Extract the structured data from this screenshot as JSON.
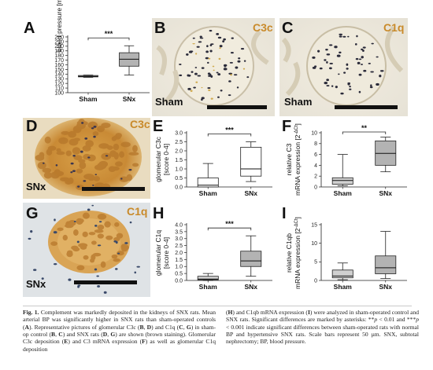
{
  "panels": {
    "A": {
      "letter": "A",
      "sig": "***"
    },
    "B": {
      "letter": "B",
      "label": "C3c",
      "group": "Sham"
    },
    "C": {
      "letter": "C",
      "label": "C1q",
      "group": "Sham"
    },
    "D": {
      "letter": "D",
      "label": "C3c",
      "group": "SNx"
    },
    "E": {
      "letter": "E",
      "sig": "***"
    },
    "F": {
      "letter": "F",
      "sig": "**"
    },
    "G": {
      "letter": "G",
      "label": "C1q",
      "group": "SNx"
    },
    "H": {
      "letter": "H",
      "sig": "***"
    },
    "I": {
      "letter": "I"
    }
  },
  "chart_data": [
    {
      "panel": "A",
      "type": "box",
      "categories": [
        "Sham",
        "SNx"
      ],
      "ylabel": "blood pressure [mmHg]",
      "yticks": [
        100,
        110,
        120,
        130,
        140,
        150,
        160,
        170,
        180,
        190,
        200,
        210,
        220
      ],
      "ylim": [
        100,
        220
      ],
      "boxes": [
        {
          "name": "Sham",
          "min": 133,
          "q1": 134,
          "median": 135,
          "q3": 137,
          "max": 138
        },
        {
          "name": "SNx",
          "min": 138,
          "q1": 157,
          "median": 172,
          "q3": 186,
          "max": 201
        }
      ],
      "significance": "***"
    },
    {
      "panel": "E",
      "type": "box",
      "categories": [
        "Sham",
        "SNx"
      ],
      "ylabel": "glomerular C3c",
      "ylabel2": "[score 0-4]",
      "yticks": [
        0.0,
        0.5,
        1.0,
        1.5,
        2.0,
        2.5,
        3.0
      ],
      "ylim": [
        0,
        3
      ],
      "boxes": [
        {
          "name": "Sham",
          "min": 0,
          "q1": 0,
          "median": 0.1,
          "q3": 0.5,
          "max": 1.3
        },
        {
          "name": "SNx",
          "min": 0.3,
          "q1": 0.6,
          "median": 1.0,
          "q3": 2.2,
          "max": 2.5
        }
      ],
      "significance": "***"
    },
    {
      "panel": "F",
      "type": "box",
      "categories": [
        "Sham",
        "SNx"
      ],
      "ylabel": "relative C3",
      "ylabel2": "mRNA expression [2",
      "ylabel2_sup": "-ΔCt",
      "yticks": [
        0,
        2,
        4,
        6,
        8,
        10
      ],
      "ylim": [
        0,
        10
      ],
      "boxes": [
        {
          "name": "Sham",
          "min": 0.2,
          "q1": 0.5,
          "median": 1.2,
          "q3": 1.7,
          "max": 6.0
        },
        {
          "name": "SNx",
          "min": 2.8,
          "q1": 4.0,
          "median": 6.2,
          "q3": 8.5,
          "max": 9.2
        }
      ],
      "significance": "**"
    },
    {
      "panel": "H",
      "type": "box",
      "categories": [
        "Sham",
        "SNx"
      ],
      "ylabel": "glomerular C1q",
      "ylabel2": "[score 0-4]",
      "yticks": [
        0.0,
        0.5,
        1.0,
        1.5,
        2.0,
        2.5,
        3.0,
        3.5,
        4.0
      ],
      "ylim": [
        0,
        4
      ],
      "boxes": [
        {
          "name": "Sham",
          "min": 0,
          "q1": 0.05,
          "median": 0.1,
          "q3": 0.3,
          "max": 0.5
        },
        {
          "name": "SNx",
          "min": 0.3,
          "q1": 1.0,
          "median": 1.4,
          "q3": 2.1,
          "max": 3.2
        }
      ],
      "significance": "***"
    },
    {
      "panel": "I",
      "type": "box",
      "categories": [
        "Sham",
        "SNx"
      ],
      "ylabel": "relative C1qb",
      "ylabel2": "mRNA expression [2",
      "ylabel2_sup": "-ΔCt",
      "yticks": [
        0,
        5,
        10,
        15
      ],
      "ylim": [
        0,
        15
      ],
      "boxes": [
        {
          "name": "Sham",
          "min": 0.2,
          "q1": 0.7,
          "median": 1.2,
          "q3": 2.8,
          "max": 4.7
        },
        {
          "name": "SNx",
          "min": 0.5,
          "q1": 1.8,
          "median": 3.4,
          "q3": 6.6,
          "max": 13.2
        }
      ],
      "significance": ""
    }
  ],
  "caption": {
    "lead": "Fig. 1.",
    "part1": " Complement was markedly deposited in the kidneys of SNX rats. Mean arterial BP was significantly higher in SNX rats than sham-operated controls (",
    "A": "A",
    "part2": "). Representative pictures of glomerular C3c (",
    "B": "B",
    "comma1": ", ",
    "D": "D",
    "part3": ") and C1q (",
    "C": "C",
    "comma2": ", ",
    "G": "G",
    "part4": ") in sham-op control (",
    "B2": "B",
    "comma3": ", ",
    "C2": "C",
    "part5": ") and SNX rats (",
    "D2": "D",
    "comma4": ", ",
    "G2": "G",
    "part6": ") are shown (brown staining). Glomerular C3c deposition (",
    "E": "E",
    "part7": ") and C3 mRNA expression (",
    "F": "F",
    "part8": ") as well as glomerular C1q deposition",
    "col2a": "(",
    "H": "H",
    "col2b": ") and C1qb mRNA expression (",
    "I": "I",
    "col2c": ") were analyzed in sham-operated control and SNX rats. Significant differences are marked by asterisks: **",
    "p1": "p",
    "col2d": " < 0.01 and ***",
    "p2": "p",
    "col2e": " < 0.001 indicate significant differences between sham-operated rats with normal BP and hypertensive SNX rats. Scale bars represent 50 µm. SNX, subtotal nephrectomy; BP, blood pressure."
  }
}
